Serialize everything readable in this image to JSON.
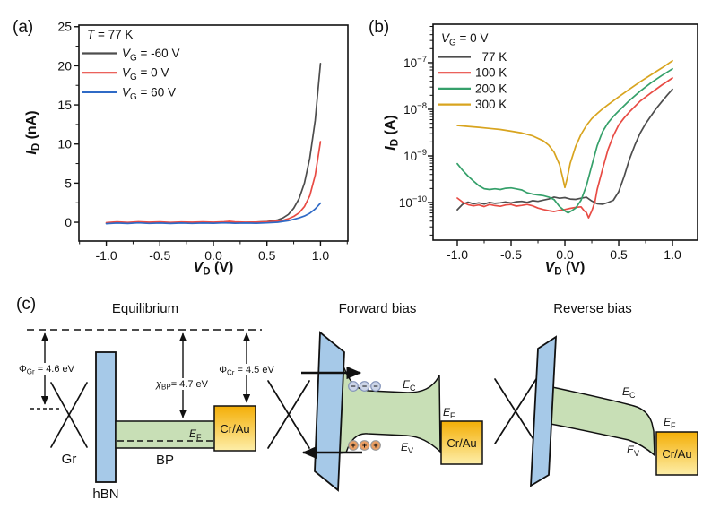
{
  "chart_data": [
    {
      "id": "chart-a",
      "panel_label": "(a)",
      "type": "line",
      "xlabel": "V_D (V)",
      "xlabel_parts": [
        "V",
        "D",
        " (V)"
      ],
      "ylabel": "I_D (nA)",
      "ylabel_parts": [
        "I",
        "D",
        " (nA)"
      ],
      "yscale": "linear",
      "xlim": [
        -1.256,
        1.256
      ],
      "ylim": [
        -2.4,
        25.2
      ],
      "xticks": [
        -1.0,
        -0.5,
        0.0,
        0.5,
        1.0
      ],
      "x_minor_step": 0.25,
      "yticks": [
        0,
        5,
        10,
        15,
        20,
        25
      ],
      "y_minor_step": 2.5,
      "grid": false,
      "legend": {
        "position": "top-left",
        "title": "T = 77 K",
        "title_parts": [
          "T",
          "",
          " = 77 K"
        ]
      },
      "series": [
        {
          "name": "V_G = -60 V",
          "name_parts": [
            "V",
            "G",
            " = -60 V"
          ],
          "color": "#4d4d4d",
          "points": [
            [
              -1,
              -0.12
            ],
            [
              -0.9,
              -0.05
            ],
            [
              -0.8,
              -0.1
            ],
            [
              -0.7,
              -0.04
            ],
            [
              -0.6,
              -0.1
            ],
            [
              -0.5,
              -0.05
            ],
            [
              -0.4,
              -0.1
            ],
            [
              -0.3,
              -0.03
            ],
            [
              -0.2,
              -0.08
            ],
            [
              -0.1,
              -0.04
            ],
            [
              0,
              -0.07
            ],
            [
              0.1,
              0.0
            ],
            [
              0.2,
              -0.05
            ],
            [
              0.3,
              -0.02
            ],
            [
              0.4,
              0.02
            ],
            [
              0.5,
              0.1
            ],
            [
              0.55,
              0.18
            ],
            [
              0.6,
              0.3
            ],
            [
              0.65,
              0.55
            ],
            [
              0.7,
              1.0
            ],
            [
              0.75,
              1.8
            ],
            [
              0.8,
              3.0
            ],
            [
              0.85,
              5.0
            ],
            [
              0.9,
              8.2
            ],
            [
              0.95,
              13.0
            ],
            [
              1.0,
              20.3
            ]
          ]
        },
        {
          "name": "V_G = 0 V",
          "name_parts": [
            "V",
            "G",
            " = 0 V"
          ],
          "color": "#e84b44",
          "points": [
            [
              -1,
              -0.05
            ],
            [
              -0.9,
              0.05
            ],
            [
              -0.8,
              -0.02
            ],
            [
              -0.7,
              0.06
            ],
            [
              -0.6,
              0.0
            ],
            [
              -0.5,
              0.05
            ],
            [
              -0.4,
              -0.02
            ],
            [
              -0.3,
              0.04
            ],
            [
              -0.2,
              0.0
            ],
            [
              -0.1,
              0.05
            ],
            [
              0,
              0.0
            ],
            [
              0.1,
              0.06
            ],
            [
              0.15,
              0.12
            ],
            [
              0.2,
              0.05
            ],
            [
              0.3,
              0.0
            ],
            [
              0.4,
              0.03
            ],
            [
              0.5,
              0.06
            ],
            [
              0.6,
              0.15
            ],
            [
              0.65,
              0.25
            ],
            [
              0.7,
              0.45
            ],
            [
              0.75,
              0.75
            ],
            [
              0.8,
              1.2
            ],
            [
              0.85,
              2.0
            ],
            [
              0.9,
              3.4
            ],
            [
              0.95,
              6.0
            ],
            [
              1.0,
              10.3
            ]
          ]
        },
        {
          "name": "V_G = 60 V",
          "name_parts": [
            "V",
            "G",
            " = 60 V"
          ],
          "color": "#2f6ac6",
          "points": [
            [
              -1,
              -0.18
            ],
            [
              -0.9,
              -0.1
            ],
            [
              -0.8,
              -0.15
            ],
            [
              -0.7,
              -0.08
            ],
            [
              -0.6,
              -0.14
            ],
            [
              -0.5,
              -0.1
            ],
            [
              -0.4,
              -0.15
            ],
            [
              -0.3,
              -0.1
            ],
            [
              -0.2,
              -0.14
            ],
            [
              -0.1,
              -0.1
            ],
            [
              0,
              -0.12
            ],
            [
              0.1,
              -0.08
            ],
            [
              0.2,
              -0.12
            ],
            [
              0.3,
              -0.1
            ],
            [
              0.4,
              -0.12
            ],
            [
              0.5,
              -0.08
            ],
            [
              0.6,
              0.0
            ],
            [
              0.7,
              0.2
            ],
            [
              0.8,
              0.55
            ],
            [
              0.85,
              0.8
            ],
            [
              0.9,
              1.15
            ],
            [
              0.95,
              1.7
            ],
            [
              1.0,
              2.45
            ]
          ]
        }
      ]
    },
    {
      "id": "chart-b",
      "panel_label": "(b)",
      "type": "line",
      "xlabel": "V_D (V)",
      "xlabel_parts": [
        "V",
        "D",
        " (V)"
      ],
      "ylabel": "I_D (A)",
      "ylabel_parts": [
        "I",
        "D",
        " (A)"
      ],
      "yscale": "log",
      "xlim": [
        -1.225,
        1.233
      ],
      "ylim": [
        1.56e-11,
        6.7e-07
      ],
      "xticks": [
        -1.0,
        -0.5,
        0.0,
        0.5,
        1.0
      ],
      "x_minor_step": 0.25,
      "ytick_exponents": [
        -7,
        -8,
        -9,
        -10
      ],
      "grid": false,
      "legend": {
        "position": "top-left",
        "title": "V_G = 0 V",
        "title_parts": [
          "V",
          "G",
          " = 0 V"
        ]
      },
      "series": [
        {
          "name": "77 K",
          "name_parts": [
            "",
            "",
            "  77 K"
          ],
          "color": "#4d4d4d",
          "points": [
            [
              -1,
              7e-11
            ],
            [
              -0.95,
              9.2e-11
            ],
            [
              -0.9,
              1.02e-10
            ],
            [
              -0.85,
              9.4e-11
            ],
            [
              -0.8,
              9.9e-11
            ],
            [
              -0.75,
              9.3e-11
            ],
            [
              -0.7,
              1.01e-10
            ],
            [
              -0.65,
              9.6e-11
            ],
            [
              -0.6,
              9.9e-11
            ],
            [
              -0.55,
              1.03e-10
            ],
            [
              -0.5,
              9.8e-11
            ],
            [
              -0.45,
              1.04e-10
            ],
            [
              -0.4,
              1.06e-10
            ],
            [
              -0.35,
              1.01e-10
            ],
            [
              -0.3,
              1.1e-10
            ],
            [
              -0.25,
              1.06e-10
            ],
            [
              -0.2,
              1.13e-10
            ],
            [
              -0.15,
              1.19e-10
            ],
            [
              -0.1,
              1.31e-10
            ],
            [
              -0.05,
              1.24e-10
            ],
            [
              0,
              1.28e-10
            ],
            [
              0.05,
              1.19e-10
            ],
            [
              0.1,
              1.17e-10
            ],
            [
              0.15,
              1.24e-10
            ],
            [
              0.2,
              1.3e-10
            ],
            [
              0.25,
              1.08e-10
            ],
            [
              0.3,
              9.4e-11
            ],
            [
              0.35,
              9.2e-11
            ],
            [
              0.4,
              1e-10
            ],
            [
              0.45,
              1.12e-10
            ],
            [
              0.5,
              1.7e-10
            ],
            [
              0.55,
              3.6e-10
            ],
            [
              0.6,
              8.5e-10
            ],
            [
              0.65,
              1.7e-09
            ],
            [
              0.7,
              3.1e-09
            ],
            [
              0.75,
              4.9e-09
            ],
            [
              0.8,
              7.2e-09
            ],
            [
              0.85,
              1.05e-08
            ],
            [
              0.9,
              1.45e-08
            ],
            [
              0.95,
              2e-08
            ],
            [
              1,
              2.7e-08
            ]
          ]
        },
        {
          "name": "100 K",
          "name_parts": [
            "",
            "",
            "100 K"
          ],
          "color": "#e84b44",
          "points": [
            [
              -1,
              1.25e-10
            ],
            [
              -0.95,
              1.02e-10
            ],
            [
              -0.9,
              9e-11
            ],
            [
              -0.85,
              8.5e-11
            ],
            [
              -0.8,
              8.9e-11
            ],
            [
              -0.75,
              8.2e-11
            ],
            [
              -0.7,
              9.1e-11
            ],
            [
              -0.65,
              8.6e-11
            ],
            [
              -0.6,
              8.3e-11
            ],
            [
              -0.55,
              8.9e-11
            ],
            [
              -0.5,
              9.1e-11
            ],
            [
              -0.45,
              8.4e-11
            ],
            [
              -0.4,
              8.7e-11
            ],
            [
              -0.35,
              9.1e-11
            ],
            [
              -0.3,
              8.5e-11
            ],
            [
              -0.25,
              7.6e-11
            ],
            [
              -0.2,
              7.1e-11
            ],
            [
              -0.15,
              6.7e-11
            ],
            [
              -0.1,
              6.4e-11
            ],
            [
              -0.05,
              6.8e-11
            ],
            [
              0,
              7.1e-11
            ],
            [
              0.05,
              7.5e-11
            ],
            [
              0.1,
              7.9e-11
            ],
            [
              0.15,
              8.1e-11
            ],
            [
              0.18,
              6.6e-11
            ],
            [
              0.2,
              6.1e-11
            ],
            [
              0.22,
              4.7e-11
            ],
            [
              0.25,
              6.6e-11
            ],
            [
              0.28,
              1.05e-10
            ],
            [
              0.3,
              1.9e-10
            ],
            [
              0.35,
              5.2e-10
            ],
            [
              0.4,
              1.35e-09
            ],
            [
              0.45,
              2.7e-09
            ],
            [
              0.5,
              4.6e-09
            ],
            [
              0.55,
              6.5e-09
            ],
            [
              0.6,
              8.8e-09
            ],
            [
              0.7,
              1.5e-08
            ],
            [
              0.8,
              2.25e-08
            ],
            [
              0.9,
              3.3e-08
            ],
            [
              1,
              4.7e-08
            ]
          ]
        },
        {
          "name": "200 K",
          "name_parts": [
            "",
            "",
            "200 K"
          ],
          "color": "#35a06a",
          "points": [
            [
              -1,
              6.8e-10
            ],
            [
              -0.95,
              4.9e-10
            ],
            [
              -0.9,
              3.7e-10
            ],
            [
              -0.85,
              2.9e-10
            ],
            [
              -0.8,
              2.3e-10
            ],
            [
              -0.75,
              1.98e-10
            ],
            [
              -0.7,
              1.9e-10
            ],
            [
              -0.65,
              1.97e-10
            ],
            [
              -0.6,
              1.9e-10
            ],
            [
              -0.55,
              2.02e-10
            ],
            [
              -0.5,
              2.06e-10
            ],
            [
              -0.45,
              1.96e-10
            ],
            [
              -0.4,
              1.86e-10
            ],
            [
              -0.35,
              1.62e-10
            ],
            [
              -0.3,
              1.52e-10
            ],
            [
              -0.25,
              1.46e-10
            ],
            [
              -0.2,
              1.41e-10
            ],
            [
              -0.15,
              1.31e-10
            ],
            [
              -0.1,
              1.16e-10
            ],
            [
              -0.05,
              8.2e-11
            ],
            [
              0,
              6.6e-11
            ],
            [
              0.03,
              6e-11
            ],
            [
              0.06,
              6.6e-11
            ],
            [
              0.1,
              7.6e-11
            ],
            [
              0.15,
              1.12e-10
            ],
            [
              0.2,
              2.3e-10
            ],
            [
              0.25,
              6.2e-10
            ],
            [
              0.3,
              1.65e-09
            ],
            [
              0.35,
              3.3e-09
            ],
            [
              0.4,
              5.1e-09
            ],
            [
              0.45,
              7e-09
            ],
            [
              0.5,
              9.2e-09
            ],
            [
              0.6,
              1.55e-08
            ],
            [
              0.7,
              2.45e-08
            ],
            [
              0.8,
              3.7e-08
            ],
            [
              0.9,
              5.3e-08
            ],
            [
              1,
              7.4e-08
            ]
          ]
        },
        {
          "name": "300 K",
          "name_parts": [
            "",
            "",
            "300 K"
          ],
          "color": "#d8a41f",
          "points": [
            [
              -1,
              4.5e-09
            ],
            [
              -0.9,
              4.3e-09
            ],
            [
              -0.8,
              4.1e-09
            ],
            [
              -0.7,
              3.9e-09
            ],
            [
              -0.6,
              3.7e-09
            ],
            [
              -0.5,
              3.4e-09
            ],
            [
              -0.4,
              3.1e-09
            ],
            [
              -0.3,
              2.7e-09
            ],
            [
              -0.2,
              2.1e-09
            ],
            [
              -0.15,
              1.7e-09
            ],
            [
              -0.1,
              1.2e-09
            ],
            [
              -0.05,
              6.5e-10
            ],
            [
              -0.02,
              3.4e-10
            ],
            [
              0,
              2.1e-10
            ],
            [
              0.02,
              3.2e-10
            ],
            [
              0.05,
              7e-10
            ],
            [
              0.1,
              1.6e-09
            ],
            [
              0.15,
              2.9e-09
            ],
            [
              0.2,
              4.5e-09
            ],
            [
              0.25,
              6.3e-09
            ],
            [
              0.3,
              8.1e-09
            ],
            [
              0.35,
              1.02e-08
            ],
            [
              0.4,
              1.25e-08
            ],
            [
              0.5,
              1.85e-08
            ],
            [
              0.6,
              2.7e-08
            ],
            [
              0.7,
              3.9e-08
            ],
            [
              0.8,
              5.5e-08
            ],
            [
              0.9,
              7.7e-08
            ],
            [
              1,
              1.1e-07
            ]
          ]
        }
      ]
    }
  ],
  "panel_c": {
    "label": "(c)",
    "section_titles": [
      "Equilibrium",
      "Forward bias",
      "Reverse bias"
    ],
    "materials": {
      "gr": "Gr",
      "hbn": "hBN",
      "bp": "BP",
      "crau": "Cr/Au"
    },
    "band_labels": {
      "ec": [
        "E",
        "C"
      ],
      "ev": [
        "E",
        "V"
      ],
      "ef": [
        "E",
        "F"
      ]
    },
    "annotations": {
      "phi_gr": [
        "Φ",
        "Gr",
        " = 4.6 eV"
      ],
      "chi_bp": [
        "χ",
        "BP",
        "= 4.7 eV"
      ],
      "phi_cr": [
        "Φ",
        "Cr",
        " = 4.5 eV"
      ]
    },
    "charges": {
      "electron": "−",
      "hole": "+"
    },
    "colors": {
      "hbn": "#a6c9e8",
      "bp": "#c8dfb6",
      "gold_top": "#f4ae06",
      "gold_bottom": "#fdeea9",
      "electron_fill": "#ccd5e8",
      "electron_stroke": "#8292b8",
      "hole_fill": "#eb9f63",
      "hole_stroke": "#999999"
    }
  }
}
